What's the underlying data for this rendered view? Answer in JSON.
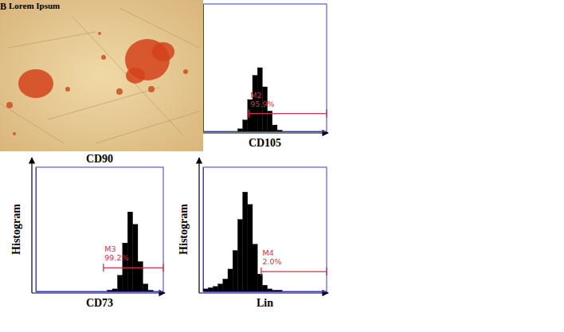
{
  "figure": {
    "panel_label": "B",
    "image_caption": "Lorem Ipsum",
    "top_left_x_label": "CD90"
  },
  "chart_data": [
    {
      "type": "histogram",
      "x_label": "CD105",
      "color": "#000000",
      "bins": [
        0,
        4,
        8,
        12,
        16,
        20,
        24,
        28,
        32,
        36,
        40,
        44,
        48,
        52,
        56,
        60,
        64,
        68,
        72,
        76,
        80,
        84,
        88,
        92,
        96,
        100
      ],
      "counts": [
        0,
        0,
        0,
        0,
        0,
        0,
        0,
        2,
        9,
        25,
        44,
        50,
        35,
        16,
        5,
        1,
        0,
        0,
        0,
        0,
        0,
        0,
        0,
        0,
        0
      ],
      "xlim": [
        0,
        100
      ],
      "ylim": [
        0,
        100
      ],
      "xticks": [],
      "yticks": [],
      "tick_labels": false,
      "gate": {
        "name": "M2",
        "value": 95.9,
        "value_label": "95.9%",
        "x_range": [
          37,
          100
        ],
        "y": 14
      }
    },
    {
      "type": "histogram",
      "x_label": "CD73",
      "y_label": "Histogram",
      "color": "#000000",
      "bins": [
        0,
        4,
        8,
        12,
        16,
        20,
        24,
        28,
        32,
        36,
        40,
        44,
        48,
        52,
        56,
        60,
        64,
        68,
        72,
        76,
        80,
        84,
        88,
        92,
        96,
        100
      ],
      "counts": [
        0,
        0,
        0,
        0,
        0,
        0,
        0,
        0,
        0,
        0,
        0,
        0,
        0,
        0,
        1,
        2,
        13,
        39,
        64,
        54,
        24,
        6,
        1,
        0,
        0
      ],
      "xlim": [
        0,
        100
      ],
      "ylim": [
        0,
        100
      ],
      "xticks": [],
      "yticks": [],
      "tick_labels": false,
      "gate": {
        "name": "M3",
        "value": 99.2,
        "value_label": "99.2%",
        "x_range": [
          53,
          100
        ],
        "y": 19
      }
    },
    {
      "type": "histogram",
      "x_label": "Lin",
      "y_label": "Histogram",
      "color": "#000000",
      "bins": [
        0,
        4,
        8,
        12,
        16,
        20,
        24,
        28,
        32,
        36,
        40,
        44,
        48,
        52,
        56,
        60,
        64,
        68,
        72,
        76,
        80,
        84,
        88,
        92,
        96,
        100
      ],
      "counts": [
        2,
        3,
        4,
        6,
        10,
        18,
        33,
        58,
        80,
        70,
        38,
        14,
        5,
        2,
        1,
        1,
        0,
        0,
        0,
        0,
        0,
        0,
        0,
        0,
        0
      ],
      "xlim": [
        0,
        100
      ],
      "ylim": [
        0,
        100
      ],
      "xticks": [],
      "yticks": [],
      "tick_labels": false,
      "gate": {
        "name": "M4",
        "value": 2.0,
        "value_label": "2.0%",
        "x_range": [
          47,
          100
        ],
        "y": 16
      }
    }
  ]
}
